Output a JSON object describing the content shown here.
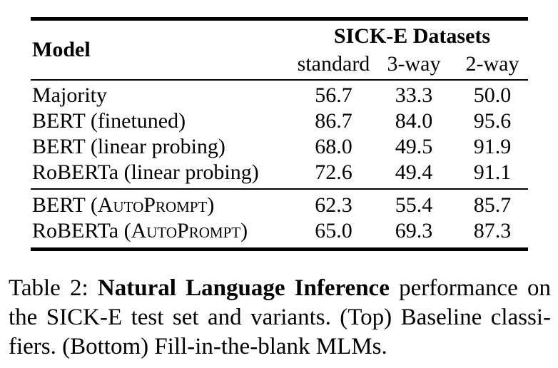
{
  "page": {
    "background_color": "#ffffff",
    "text_color": "#000000"
  },
  "table": {
    "header": {
      "model_label": "Model",
      "group_label": "SICK-E Datasets",
      "sub_columns": [
        "standard",
        "3-way",
        "2-way"
      ]
    },
    "baseline_rows": [
      {
        "model": "Majority",
        "values": [
          "56.7",
          "33.3",
          "50.0"
        ]
      },
      {
        "model": "BERT (finetuned)",
        "values": [
          "86.7",
          "84.0",
          "95.6"
        ]
      },
      {
        "model": "BERT (linear probing)",
        "values": [
          "68.0",
          "49.5",
          "91.9"
        ]
      },
      {
        "model": "RoBERTa (linear probing)",
        "values": [
          "72.6",
          "49.4",
          "91.1"
        ]
      }
    ],
    "mlm_rows": [
      {
        "model_prefix": "BERT (",
        "model_smallcaps": "AutoPrompt",
        "model_suffix": ")",
        "values": [
          "62.3",
          "55.4",
          "85.7"
        ]
      },
      {
        "model_prefix": "RoBERTa (",
        "model_smallcaps": "AutoPrompt",
        "model_suffix": ")",
        "values": [
          "65.0",
          "69.3",
          "87.3"
        ]
      }
    ]
  },
  "caption": {
    "line1_prefix": "Table 2: ",
    "line1_bold": "Natural Language Inference",
    "line1_rest": " performance on",
    "line2": "the SICK-E test set and variants. (Top) Baseline classi-",
    "line3": "fiers. (Bottom) Fill-in-the-blank MLMs."
  }
}
